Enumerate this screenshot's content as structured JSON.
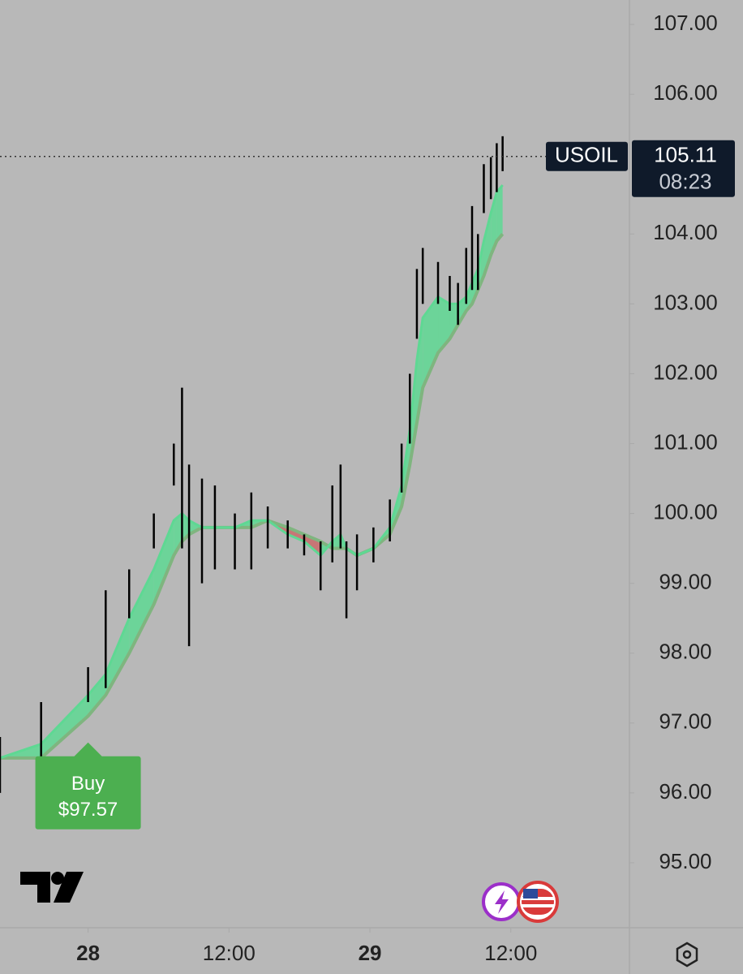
{
  "chart_data": {
    "type": "range-bar",
    "x": [
      -7.5,
      -4,
      0,
      1.5,
      3.5,
      5.6,
      7.3,
      8,
      8.6,
      9.7,
      10.8,
      12.5,
      13.9,
      15.3,
      17,
      18.4,
      19.8,
      20.8,
      21.5,
      22,
      22.9,
      24.3,
      25.7,
      26.7,
      27.4,
      28,
      28.5,
      29.8,
      30.8,
      31.5,
      32.2,
      32.7,
      33.2,
      33.7,
      34.3,
      34.8,
      35.3
    ],
    "high": [
      96.8,
      97.3,
      97.8,
      98.9,
      99.2,
      100.0,
      101.0,
      101.8,
      100.7,
      100.5,
      100.4,
      100.0,
      100.3,
      100.1,
      99.9,
      99.7,
      99.6,
      100.4,
      100.7,
      99.6,
      99.7,
      99.8,
      100.2,
      101.0,
      102.0,
      103.5,
      103.8,
      103.6,
      103.4,
      103.3,
      103.8,
      104.4,
      104.0,
      105.0,
      105.1,
      105.3,
      105.4
    ],
    "low": [
      96.0,
      96.3,
      97.3,
      97.5,
      98.5,
      99.5,
      100.4,
      99.5,
      98.1,
      99.0,
      99.2,
      99.2,
      99.2,
      99.5,
      99.5,
      99.4,
      98.9,
      99.3,
      99.5,
      98.5,
      98.9,
      99.3,
      99.6,
      100.3,
      101.0,
      102.5,
      103.0,
      103.0,
      102.9,
      102.7,
      103.0,
      103.2,
      103.2,
      104.3,
      104.5,
      104.6,
      104.9
    ],
    "bar_color": "#000000",
    "ribbon": {
      "fast": [
        96.5,
        96.7,
        97.4,
        97.7,
        98.5,
        99.2,
        99.9,
        100.0,
        99.9,
        99.8,
        99.8,
        99.8,
        99.9,
        99.9,
        99.7,
        99.6,
        99.4,
        99.6,
        99.7,
        99.5,
        99.4,
        99.5,
        99.8,
        100.4,
        101.2,
        102.2,
        102.8,
        103.1,
        103.0,
        103.0,
        103.1,
        103.3,
        103.5,
        103.9,
        104.3,
        104.6,
        104.7
      ],
      "slow": [
        96.5,
        96.5,
        97.1,
        97.4,
        98.0,
        98.7,
        99.4,
        99.6,
        99.7,
        99.8,
        99.8,
        99.8,
        99.8,
        99.9,
        99.8,
        99.7,
        99.6,
        99.5,
        99.5,
        99.5,
        99.4,
        99.5,
        99.7,
        100.1,
        100.7,
        101.3,
        101.8,
        102.3,
        102.5,
        102.7,
        102.9,
        103.0,
        103.2,
        103.4,
        103.7,
        103.9,
        104.0
      ],
      "up_color": "#5ed893",
      "down_color": "#c96a6a",
      "slow_color": "#7fb57f"
    },
    "xlim": [
      -7.5,
      46.1
    ],
    "ylim": [
      94.07,
      107.35
    ],
    "xticks": [
      {
        "value": 0,
        "label": "28"
      },
      {
        "value": 12,
        "label": "12:00"
      },
      {
        "value": 24,
        "label": "29"
      },
      {
        "value": 36,
        "label": "12:00"
      }
    ],
    "yticks": [
      {
        "value": 107,
        "label": "107.00"
      },
      {
        "value": 106,
        "label": "106.00"
      },
      {
        "value": 104,
        "label": "104.00"
      },
      {
        "value": 103,
        "label": "103.00"
      },
      {
        "value": 102,
        "label": "102.00"
      },
      {
        "value": 101,
        "label": "101.00"
      },
      {
        "value": 100,
        "label": "100.00"
      },
      {
        "value": 99,
        "label": "99.00"
      },
      {
        "value": 98,
        "label": "98.00"
      },
      {
        "value": 97,
        "label": "97.00"
      },
      {
        "value": 96,
        "label": "96.00"
      },
      {
        "value": 95,
        "label": "95.00"
      }
    ],
    "last_price": {
      "symbol": "USOIL",
      "value": 105.11,
      "countdown": "08:23"
    },
    "annotation": {
      "text": "Buy",
      "x": 0,
      "value": 97.57,
      "value_label": "$97.57",
      "color": "#4caf50"
    }
  }
}
